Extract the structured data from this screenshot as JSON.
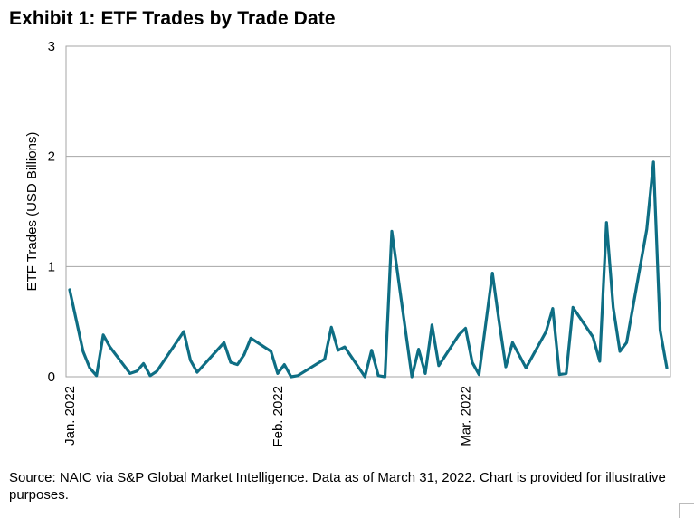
{
  "chart_data": {
    "type": "line",
    "title": "Exhibit 1: ETF Trades by Trade Date",
    "xlabel": "",
    "ylabel": "ETF Trades (USD Billions)",
    "ylim": [
      0,
      3
    ],
    "yticks": [
      "0",
      "1",
      "2",
      "3"
    ],
    "xticks": [
      {
        "label": "Jan. 2022",
        "day": 0
      },
      {
        "label": "Feb. 2022",
        "day": 31
      },
      {
        "label": "Mar. 2022",
        "day": 59
      }
    ],
    "xlim": [
      0,
      89
    ],
    "grid": true,
    "series": [
      {
        "name": "ETF Trades",
        "color": "#0e6e84",
        "x": [
          0,
          2,
          3,
          4,
          5,
          6,
          9,
          10,
          11,
          12,
          13,
          17,
          18,
          19,
          23,
          24,
          25,
          26,
          27,
          30,
          31,
          32,
          33,
          34,
          38,
          39,
          40,
          41,
          44,
          45,
          46,
          47,
          48,
          51,
          52,
          53,
          54,
          55,
          58,
          59,
          60,
          61,
          63,
          64,
          65,
          66,
          68,
          71,
          72,
          73,
          74,
          75,
          78,
          79,
          80,
          81,
          82,
          83,
          86,
          87,
          88,
          89
        ],
        "values": [
          0.79,
          0.23,
          0.08,
          0.01,
          0.38,
          0.27,
          0.03,
          0.05,
          0.12,
          0.01,
          0.05,
          0.41,
          0.15,
          0.04,
          0.31,
          0.13,
          0.11,
          0.2,
          0.35,
          0.23,
          0.03,
          0.11,
          0.0,
          0.01,
          0.16,
          0.45,
          0.24,
          0.27,
          0.0,
          0.24,
          0.01,
          0.0,
          1.32,
          0.0,
          0.25,
          0.03,
          0.47,
          0.1,
          0.38,
          0.44,
          0.13,
          0.02,
          0.94,
          0.5,
          0.09,
          0.31,
          0.08,
          0.41,
          0.62,
          0.02,
          0.03,
          0.63,
          0.36,
          0.14,
          1.4,
          0.63,
          0.23,
          0.31,
          1.34,
          1.95,
          0.42,
          0.08
        ]
      }
    ]
  },
  "footnote": "Source: NAIC via S&P Global Market Intelligence.  Data as of March 31, 2022.  Chart is provided for illustrative purposes."
}
